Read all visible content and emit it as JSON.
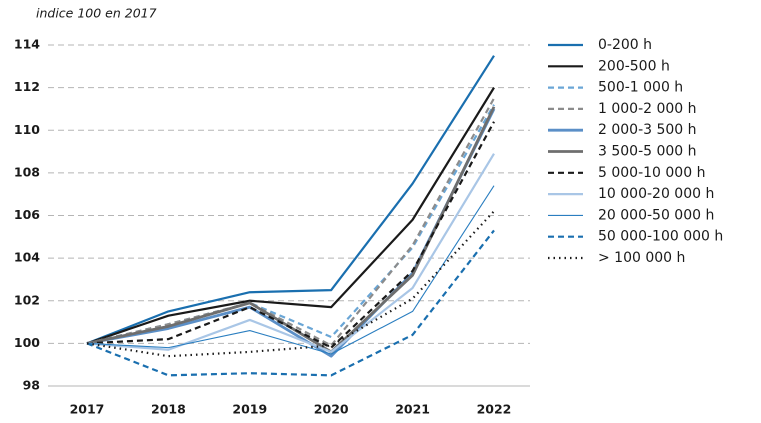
{
  "chart_data": {
    "type": "line",
    "subtitle": "indice 100 en 2017",
    "categories": [
      "2017",
      "2018",
      "2019",
      "2020",
      "2021",
      "2022"
    ],
    "ylim": [
      98,
      114
    ],
    "yticks": [
      98,
      100,
      102,
      104,
      106,
      108,
      110,
      112,
      114
    ],
    "grid": true,
    "legend": "right",
    "series": [
      {
        "name": "0-200 h",
        "color": "#1a6faf",
        "linestyle": "solid",
        "linewidth": 2.2,
        "values": [
          100,
          101.5,
          102.4,
          102.5,
          107.5,
          113.5
        ]
      },
      {
        "name": "200-500 h",
        "color": "#1a1a1a",
        "linestyle": "solid",
        "linewidth": 2.2,
        "values": [
          100,
          101.3,
          102.0,
          101.7,
          105.8,
          112.0
        ]
      },
      {
        "name": "500-1 000 h",
        "color": "#6aa6d6",
        "linestyle": "dashed",
        "linewidth": 2.2,
        "values": [
          100,
          100.9,
          101.9,
          100.3,
          104.5,
          111.2
        ]
      },
      {
        "name": "1 000-2 000 h",
        "color": "#8c8c8c",
        "linestyle": "dashed",
        "linewidth": 2.2,
        "values": [
          100,
          100.9,
          101.9,
          99.9,
          104.6,
          111.5
        ]
      },
      {
        "name": "2 000-3 500 h",
        "color": "#5b8fc7",
        "linestyle": "solid",
        "linewidth": 2.8,
        "values": [
          100,
          100.7,
          101.7,
          99.4,
          103.3,
          111.0
        ]
      },
      {
        "name": "3 500-5 000 h",
        "color": "#6e6e6e",
        "linestyle": "solid",
        "linewidth": 2.8,
        "values": [
          100,
          100.8,
          101.9,
          99.6,
          103.2,
          111.1
        ]
      },
      {
        "name": "5 000-10 000 h",
        "color": "#1a1a1a",
        "linestyle": "dashed",
        "linewidth": 2.2,
        "values": [
          100,
          100.2,
          101.7,
          99.8,
          103.4,
          110.4
        ]
      },
      {
        "name": "10 000-20 000 h",
        "color": "#a9c6e6",
        "linestyle": "solid",
        "linewidth": 2.2,
        "values": [
          100,
          99.7,
          101.1,
          99.6,
          102.6,
          108.9
        ]
      },
      {
        "name": "20 000-50 000 h",
        "color": "#2a7ec0",
        "linestyle": "solid",
        "linewidth": 1.1,
        "values": [
          100,
          99.8,
          100.6,
          99.5,
          101.5,
          107.4
        ]
      },
      {
        "name": "50 000-100 000 h",
        "color": "#1a6faf",
        "linestyle": "dashed",
        "linewidth": 2.2,
        "values": [
          100,
          98.5,
          98.6,
          98.5,
          100.4,
          105.3
        ]
      },
      {
        "name": "> 100 000 h",
        "color": "#1a1a1a",
        "linestyle": "dotted",
        "linewidth": 2.2,
        "values": [
          100,
          99.4,
          99.6,
          99.9,
          102.1,
          106.2
        ]
      }
    ]
  }
}
